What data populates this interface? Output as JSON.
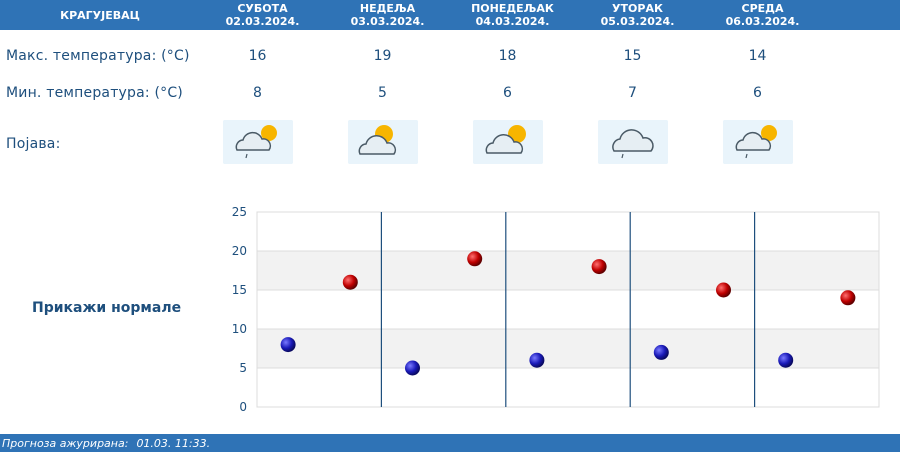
{
  "header": {
    "city": "КРАГУЈЕВАЦ",
    "days": [
      {
        "name": "СУБОТА",
        "date": "02.03.2024."
      },
      {
        "name": "НЕДЕЉА",
        "date": "03.03.2024."
      },
      {
        "name": "ПОНЕДЕЉАК",
        "date": "04.03.2024."
      },
      {
        "name": "УТОРАК",
        "date": "05.03.2024."
      },
      {
        "name": "СРЕДА",
        "date": "06.03.2024."
      }
    ]
  },
  "rows": {
    "max_label": "Макс. температура: (°C)",
    "min_label": "Мин. температура: (°C)",
    "phenomenon_label": "Појава:",
    "max_values": [
      "16",
      "19",
      "18",
      "15",
      "14"
    ],
    "min_values": [
      "8",
      "5",
      "6",
      "7",
      "6"
    ],
    "icons": [
      "partly-cloudy-light-rain-icon",
      "partly-cloudy-sun-icon",
      "partly-cloudy-sun-icon",
      "cloudy-light-rain-icon",
      "partly-cloudy-light-rain-icon"
    ]
  },
  "normals_link": "Прикажи нормале",
  "footer": {
    "updated_label": "Прогноза ажурирана:",
    "updated_value": "01.03. 11:33."
  },
  "chart_data": {
    "type": "scatter",
    "title": "",
    "xlabel": "",
    "ylabel": "",
    "ylim": [
      0,
      25
    ],
    "yticks": [
      0,
      5,
      10,
      15,
      20,
      25
    ],
    "categories": [
      "02.03.2024.",
      "03.03.2024.",
      "04.03.2024.",
      "05.03.2024.",
      "06.03.2024."
    ],
    "series": [
      {
        "values": [
          8,
          5,
          6,
          7,
          6
        ],
        "color": "#1a1ab8"
      },
      {
        "values": [
          16,
          19,
          18,
          15,
          14
        ],
        "color": "#c00000"
      }
    ],
    "grid": true,
    "colors": {
      "band": "#f2f2f2",
      "separator": "#1e4f7d",
      "axis_text": "#1e4f7d"
    }
  }
}
